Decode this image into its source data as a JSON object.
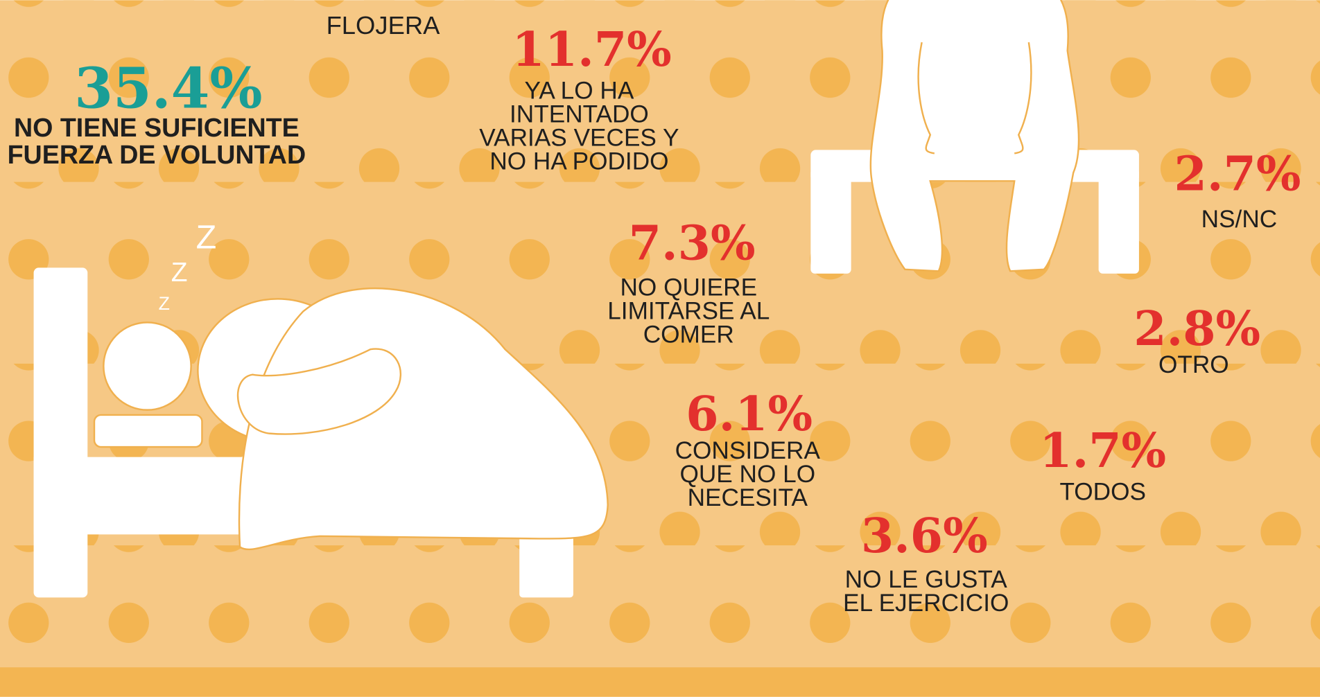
{
  "header": {
    "label": "FLOJERA"
  },
  "items": [
    {
      "value": "35.4%",
      "lines": [
        "NO TIENE SUFICIENTE",
        "FUERZA DE VOLUNTAD"
      ]
    },
    {
      "value": "11.7%",
      "lines": [
        "YA LO HA",
        "INTENTADO",
        "VARIAS VECES Y",
        "NO HA PODIDO"
      ]
    },
    {
      "value": "7.3%",
      "lines": [
        "NO QUIERE",
        "LIMITARSE AL",
        "COMER"
      ]
    },
    {
      "value": "6.1%",
      "lines": [
        "CONSIDERA",
        "QUE NO LO",
        "NECESITA"
      ]
    },
    {
      "value": "3.6%",
      "lines": [
        "NO LE GUSTA",
        "EL EJERCICIO"
      ]
    },
    {
      "value": "1.7%",
      "lines": [
        "TODOS"
      ]
    },
    {
      "value": "2.8%",
      "lines": [
        "OTRO"
      ]
    },
    {
      "value": "2.7%",
      "lines": [
        "NS/NC"
      ]
    }
  ],
  "sleep": {
    "letters": [
      "Z",
      "Z",
      "Z"
    ]
  }
}
